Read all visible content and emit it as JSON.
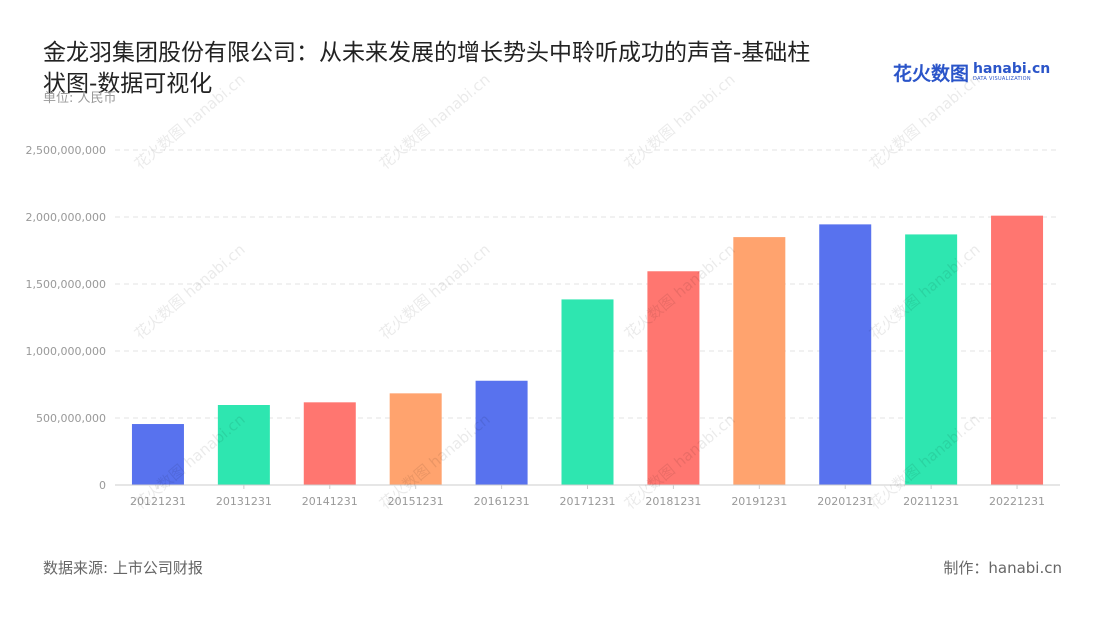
{
  "title": "金龙羽集团股份有限公司：从未来发展的增长势头中聆听成功的声音-基础柱状图-数据可视化",
  "unit_label": "单位: 人民币",
  "logo": {
    "cn": "花火数图",
    "en": "hanabi.cn",
    "sub": "DATA VISUALIZATION"
  },
  "watermark": {
    "text": "花火数图 hanabi.cn"
  },
  "footer": {
    "source": "数据来源: 上市公司财报",
    "credit": "制作：hanabi.cn"
  },
  "colors": {
    "blue": "#5872ee",
    "green": "#2ee6b0",
    "red": "#ff7670",
    "orange": "#ffa36e"
  },
  "chart_data": {
    "type": "bar",
    "title": "金龙羽集团股份有限公司：从未来发展的增长势头中聆听成功的声音-基础柱状图-数据可视化",
    "ylabel": "单位: 人民币",
    "xlabel": "",
    "ylim": [
      0,
      2500000000
    ],
    "y_ticks": [
      0,
      500000000,
      1000000000,
      1500000000,
      2000000000,
      2500000000
    ],
    "y_tick_labels": [
      "0",
      "500,000,000",
      "1,000,000,000",
      "1,500,000,000",
      "2,000,000,000",
      "2,500,000,000"
    ],
    "grid": true,
    "categories": [
      "20121231",
      "20131231",
      "20141231",
      "20151231",
      "20161231",
      "20171231",
      "20181231",
      "20191231",
      "20201231",
      "20211231",
      "20221231"
    ],
    "values": [
      455000000,
      597000000,
      617000000,
      684000000,
      778000000,
      1385000000,
      1595000000,
      1850000000,
      1945000000,
      1870000000,
      2010000000
    ],
    "bar_colors": [
      "#5872ee",
      "#2ee6b0",
      "#ff7670",
      "#ffa36e",
      "#5872ee",
      "#2ee6b0",
      "#ff7670",
      "#ffa36e",
      "#5872ee",
      "#2ee6b0",
      "#ff7670"
    ]
  }
}
